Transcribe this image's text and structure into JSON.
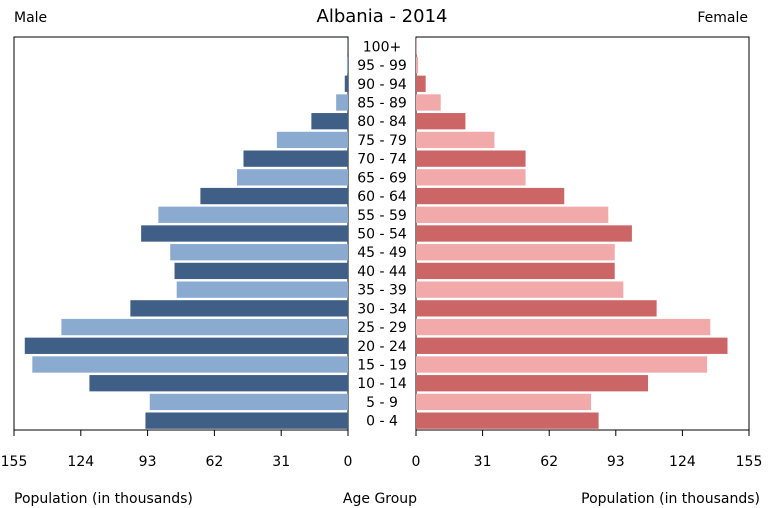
{
  "chart_data": {
    "type": "bar",
    "title": "Albania - 2014",
    "left_label": "Male",
    "right_label": "Female",
    "xlabel_left": "Population (in thousands)",
    "xlabel_center": "Age Group",
    "xlabel_right": "Population (in thousands)",
    "xlim": [
      0,
      155
    ],
    "ticks": [
      "155",
      "124",
      "93",
      "62",
      "31",
      "0"
    ],
    "ticks_right": [
      "0",
      "31",
      "62",
      "93",
      "124",
      "155"
    ],
    "tick_values": [
      155,
      124,
      93,
      62,
      31,
      0
    ],
    "tick_values_right": [
      0,
      31,
      62,
      93,
      124,
      155
    ],
    "categories": [
      "100+",
      "95 - 99",
      "90 - 94",
      "85 - 89",
      "80 - 84",
      "75 - 79",
      "70 - 74",
      "65 - 69",
      "60 - 64",
      "55 - 59",
      "50 - 54",
      "45 - 49",
      "40 - 44",
      "35 - 39",
      "30 - 34",
      "25 - 29",
      "20 - 24",
      "15 - 19",
      "10 - 14",
      "5 - 9",
      "0 - 4"
    ],
    "series": [
      {
        "name": "Male",
        "values": [
          0.1,
          0.5,
          1.5,
          5.5,
          17,
          33,
          48.5,
          51.5,
          68.5,
          88,
          96,
          82.5,
          80.5,
          79.5,
          101,
          133,
          150,
          146.5,
          120,
          92,
          94
        ]
      },
      {
        "name": "Female",
        "values": [
          0.2,
          1,
          4.5,
          11.5,
          23,
          36.5,
          51,
          51,
          69,
          89.5,
          100.5,
          92.5,
          92.5,
          96.5,
          112,
          137,
          145,
          135.5,
          108,
          81.5,
          85
        ]
      }
    ],
    "colors": {
      "male_dark": "#3f5f86",
      "male_light": "#8aaad0",
      "female_dark": "#cc6666",
      "female_light": "#f2a9a9"
    },
    "grid": false
  }
}
